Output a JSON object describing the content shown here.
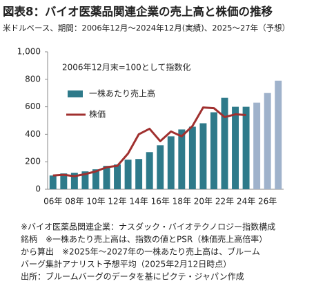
{
  "chart_data": {
    "type": "bar_line",
    "title": "図表8：バイオ医薬品関連企業の売上高と株価の推移",
    "subtitle": "米ドルベース、期間：2006年12月～2024年12月(実績)、2025～27年（予想）",
    "annotation": "2006年12月末=100として指数化",
    "categories": [
      "06年",
      null,
      "08年",
      null,
      "10年",
      null,
      "12年",
      null,
      "14年",
      null,
      "16年",
      null,
      "18年",
      null,
      "20年",
      null,
      "22年",
      null,
      "24年",
      null,
      "26年",
      null
    ],
    "series": [
      {
        "name": "一株あたり売上高",
        "kind": "bar",
        "color": "#2e7a8a",
        "colors": [
          "#2e7a8a",
          "#2e7a8a",
          "#2e7a8a",
          "#2e7a8a",
          "#2e7a8a",
          "#2e7a8a",
          "#2e7a8a",
          "#2e7a8a",
          "#2e7a8a",
          "#2e7a8a",
          "#2e7a8a",
          "#2e7a8a",
          "#2e7a8a",
          "#2e7a8a",
          "#2e7a8a",
          "#2e7a8a",
          "#2e7a8a",
          "#2e7a8a",
          "#2e7a8a",
          "#9fb2cb",
          "#9fb2cb",
          "#9fb2cb"
        ],
        "values": [
          100,
          115,
          120,
          130,
          145,
          170,
          180,
          215,
          220,
          270,
          320,
          385,
          435,
          455,
          480,
          560,
          665,
          600,
          600,
          630,
          700,
          790
        ]
      },
      {
        "name": "株価",
        "kind": "line",
        "color": "#a0302f",
        "values": [
          100,
          105,
          95,
          110,
          130,
          160,
          170,
          260,
          400,
          440,
          350,
          420,
          385,
          460,
          595,
          590,
          525,
          545,
          540,
          null,
          null,
          null
        ]
      }
    ],
    "ylim": [
      0,
      1000
    ],
    "yticks": [
      0,
      200,
      400,
      600,
      800,
      {
        "value": 1000,
        "label": "1,000"
      }
    ],
    "grid": false,
    "notes": [
      "※バイオ医薬品関連企業：ナスダック・バイオテクノロジー指数構成",
      "銘柄　※一株あたり売上高は、指数の値とPSR（株価売上高倍率）",
      "から算出　※2025年～2027年の一株あたり売上高は、ブルーム",
      "バーグ集計アナリスト予想平均（2025年2月12日時点）",
      "出所：ブルームバーグのデータを基にピクテ・ジャパン作成"
    ]
  }
}
